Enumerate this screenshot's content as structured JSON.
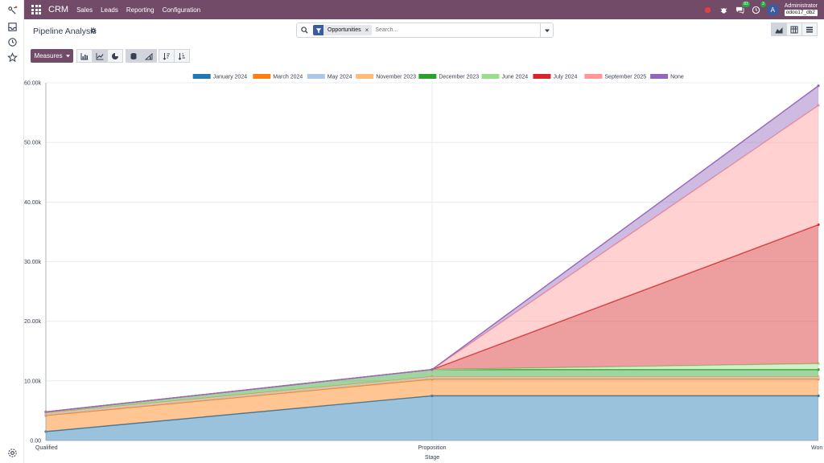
{
  "topbar": {
    "brand": "CRM",
    "menu": [
      "Sales",
      "Leads",
      "Reporting",
      "Configuration"
    ],
    "messages_badge": "83",
    "activities_badge": "3",
    "avatar_letter": "A",
    "user_name": "Administrator",
    "db_name": "odoo17_db2",
    "accent_color": "#714b67"
  },
  "control": {
    "page_title": "Pipeline Analysis",
    "facet_label": "Opportunities",
    "facet_remove": "×",
    "search_placeholder": "Search...",
    "measures_label": "Measures"
  },
  "rail_icons": [
    "activity-icon",
    "inbox-icon",
    "clock-icon",
    "star-icon",
    "settings-icon"
  ],
  "chart_data": {
    "type": "area",
    "stacked": true,
    "xlabel": "Stage",
    "categories": [
      "Qualified",
      "Proposition",
      "Won"
    ],
    "ylim": [
      0,
      60000
    ],
    "y_ticks": [
      "0.00",
      "10.00k",
      "20.00k",
      "30.00k",
      "40.00k",
      "50.00k",
      "60.00k"
    ],
    "legend_position": "top",
    "series": [
      {
        "name": "January 2024",
        "color": "#1f77b4",
        "values": [
          1500,
          7500,
          7500
        ]
      },
      {
        "name": "March 2024",
        "color": "#ff7f0e",
        "values": [
          2700,
          2800,
          2800
        ]
      },
      {
        "name": "May 2024",
        "color": "#aec7e8",
        "values": [
          200,
          200,
          200
        ]
      },
      {
        "name": "November 2023",
        "color": "#ffbb78",
        "values": [
          200,
          200,
          200
        ]
      },
      {
        "name": "December 2023",
        "color": "#2ca02c",
        "values": [
          200,
          1200,
          1200
        ]
      },
      {
        "name": "June 2024",
        "color": "#98df8a",
        "values": [
          0,
          0,
          1000
        ]
      },
      {
        "name": "July 2024",
        "color": "#d62728",
        "values": [
          0,
          0,
          23300
        ]
      },
      {
        "name": "September 2025",
        "color": "#ff9896",
        "values": [
          0,
          0,
          20000
        ]
      },
      {
        "name": "None",
        "color": "#9467bd",
        "values": [
          0,
          0,
          3300
        ]
      }
    ]
  }
}
